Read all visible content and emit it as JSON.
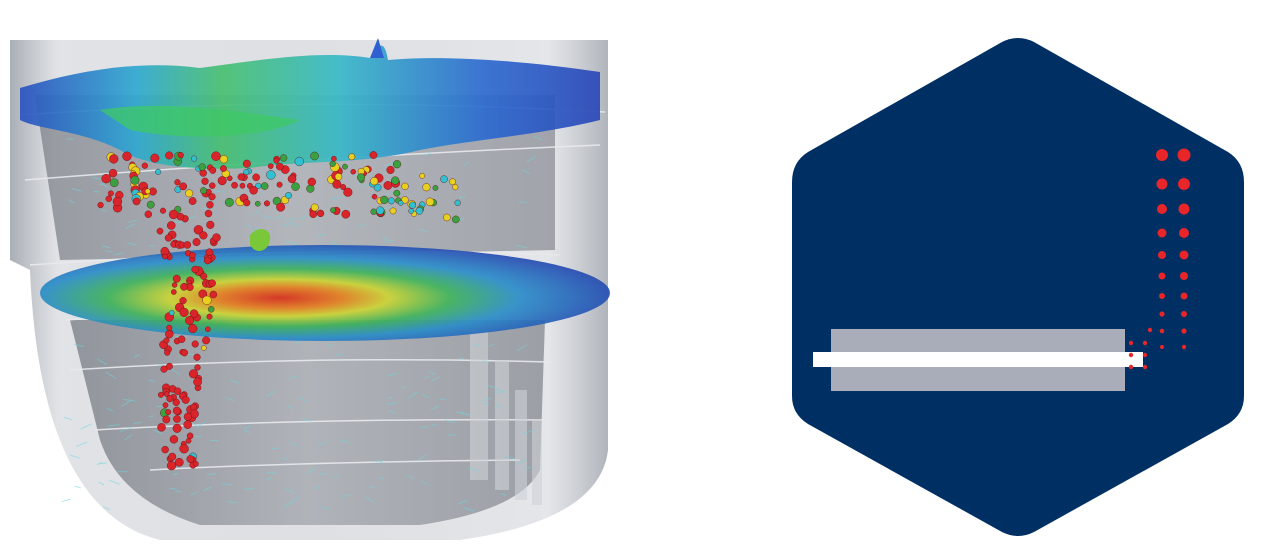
{
  "canvas": {
    "background": "#ffffff"
  },
  "left_figure": {
    "kind": "cfd-tank-simulation-render",
    "colors": {
      "tank_glass": "#b7bcc4",
      "tank_glass_dark": "#8c9098",
      "surface_blue": "#2f5fd0",
      "surface_cyan": "#30b8d8",
      "surface_green": "#3cc060",
      "particle_red": "#d8242a",
      "particle_yellow": "#e8d020",
      "particle_green": "#3aa040",
      "particle_cyan": "#30c0d0",
      "disk_blue": "#2c5cc8",
      "disk_hot": "#d83020",
      "vector_cyan": "#6fd6e0"
    }
  },
  "right_figure": {
    "kind": "hexagon-logo",
    "colors": {
      "hexagon": "#002f63",
      "bar_gray": "#a9adba",
      "bar_white": "#ffffff",
      "dots": "#e8262a"
    }
  }
}
